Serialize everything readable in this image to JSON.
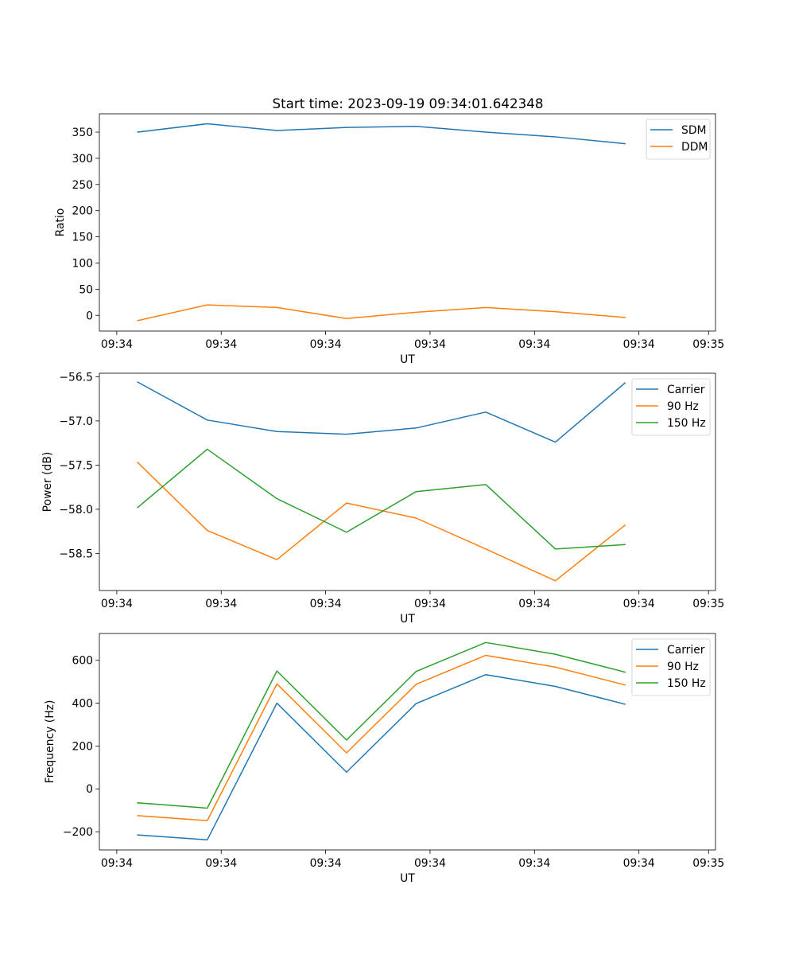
{
  "figure_title": "Start time: 2023-09-19 09:34:01.642348",
  "colors": {
    "blue": "#1f77b4",
    "orange": "#ff7f0e",
    "green": "#2ca02c"
  },
  "chart_data": [
    {
      "type": "line",
      "title": "Start time: 2023-09-19 09:34:01.642348",
      "xlabel": "UT",
      "ylabel": "Ratio",
      "x": [
        1,
        2,
        3,
        4,
        5,
        6,
        7,
        8
      ],
      "xlim": [
        0.45,
        9.3
      ],
      "ylim": [
        -30,
        385
      ],
      "x_ticks": [
        0.7,
        2.2,
        3.7,
        5.2,
        6.7,
        8.2,
        9.2
      ],
      "x_tick_labels": [
        "09:34",
        "09:34",
        "09:34",
        "09:34",
        "09:34",
        "09:34",
        "09:35"
      ],
      "y_ticks": [
        0,
        50,
        100,
        150,
        200,
        250,
        300,
        350
      ],
      "y_tick_labels": [
        "0",
        "50",
        "100",
        "150",
        "200",
        "250",
        "300",
        "350"
      ],
      "legend_position": "top-right",
      "series": [
        {
          "name": "SDM",
          "color": "#1f77b4",
          "values": [
            350,
            366,
            353,
            359,
            361,
            350,
            341,
            328
          ]
        },
        {
          "name": "DDM",
          "color": "#ff7f0e",
          "values": [
            -10,
            20,
            15,
            -6,
            6,
            15,
            7,
            -4
          ]
        }
      ]
    },
    {
      "type": "line",
      "title": "",
      "xlabel": "UT",
      "ylabel": "Power (dB)",
      "x": [
        1,
        2,
        3,
        4,
        5,
        6,
        7,
        8
      ],
      "xlim": [
        0.45,
        9.3
      ],
      "ylim": [
        -58.92,
        -56.46
      ],
      "x_ticks": [
        0.7,
        2.2,
        3.7,
        5.2,
        6.7,
        8.2,
        9.2
      ],
      "x_tick_labels": [
        "09:34",
        "09:34",
        "09:34",
        "09:34",
        "09:34",
        "09:34",
        "09:35"
      ],
      "y_ticks": [
        -58.5,
        -58.0,
        -57.5,
        -57.0,
        -56.5
      ],
      "y_tick_labels": [
        "−58.5",
        "−58.0",
        "−57.5",
        "−57.0",
        "−56.5"
      ],
      "legend_position": "top-right",
      "series": [
        {
          "name": "Carrier",
          "color": "#1f77b4",
          "values": [
            -56.56,
            -56.99,
            -57.12,
            -57.15,
            -57.08,
            -56.9,
            -57.24,
            -56.57
          ]
        },
        {
          "name": "90 Hz",
          "color": "#ff7f0e",
          "values": [
            -57.47,
            -58.24,
            -58.57,
            -57.93,
            -58.1,
            -58.45,
            -58.81,
            -58.18
          ]
        },
        {
          "name": "150 Hz",
          "color": "#2ca02c",
          "values": [
            -57.98,
            -57.32,
            -57.88,
            -58.26,
            -57.8,
            -57.72,
            -58.45,
            -58.4
          ]
        }
      ]
    },
    {
      "type": "line",
      "title": "",
      "xlabel": "UT",
      "ylabel": "Frequency (Hz)",
      "x": [
        1,
        2,
        3,
        4,
        5,
        6,
        7,
        8
      ],
      "xlim": [
        0.45,
        9.3
      ],
      "ylim": [
        -285,
        725
      ],
      "x_ticks": [
        0.7,
        2.2,
        3.7,
        5.2,
        6.7,
        8.2,
        9.2
      ],
      "x_tick_labels": [
        "09:34",
        "09:34",
        "09:34",
        "09:34",
        "09:34",
        "09:34",
        "09:35"
      ],
      "y_ticks": [
        -200,
        0,
        200,
        400,
        600
      ],
      "y_tick_labels": [
        "−200",
        "0",
        "200",
        "400",
        "600"
      ],
      "legend_position": "top-right",
      "series": [
        {
          "name": "Carrier",
          "color": "#1f77b4",
          "values": [
            -215,
            -238,
            400,
            78,
            398,
            533,
            478,
            395
          ]
        },
        {
          "name": "90 Hz",
          "color": "#ff7f0e",
          "values": [
            -125,
            -148,
            490,
            168,
            488,
            623,
            568,
            485
          ]
        },
        {
          "name": "150 Hz",
          "color": "#2ca02c",
          "values": [
            -65,
            -90,
            550,
            228,
            548,
            683,
            628,
            545
          ]
        }
      ]
    }
  ]
}
